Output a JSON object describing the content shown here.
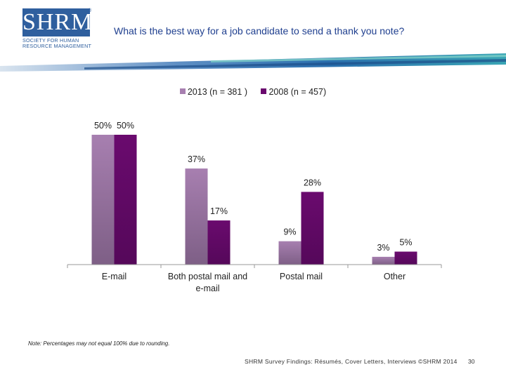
{
  "header": {
    "logo_text": "SHRM",
    "logo_reg": "®",
    "logo_sub_1": "SOCIETY FOR HUMAN",
    "logo_sub_2": "RESOURCE MANAGEMENT",
    "title": "What is the best way for a job candidate to send a thank you note?"
  },
  "colors": {
    "series_2013": "#a77fb0",
    "series_2008": "#6a0a6e",
    "title": "#1f3f8f"
  },
  "chart_data": {
    "type": "bar",
    "title": "What is the best way for a job candidate to send a thank you note?",
    "categories": [
      "E-mail",
      "Both postal mail and e-mail",
      "Postal mail",
      "Other"
    ],
    "series": [
      {
        "name": "2013 (n = 381 )",
        "values": [
          50,
          37,
          9,
          3
        ]
      },
      {
        "name": "2008 (n = 457)",
        "values": [
          50,
          17,
          28,
          5
        ]
      }
    ],
    "value_suffix": "%",
    "ylim": [
      0,
      50
    ],
    "grid": false,
    "legend": "top-center",
    "xlabel": "",
    "ylabel": ""
  },
  "footnote": "Note: Percentages may not equal 100% due to rounding.",
  "footer": {
    "source": "SHRM Survey Findings: Résumés, Cover Letters, Interviews ©SHRM 2014",
    "page_number": "30"
  }
}
